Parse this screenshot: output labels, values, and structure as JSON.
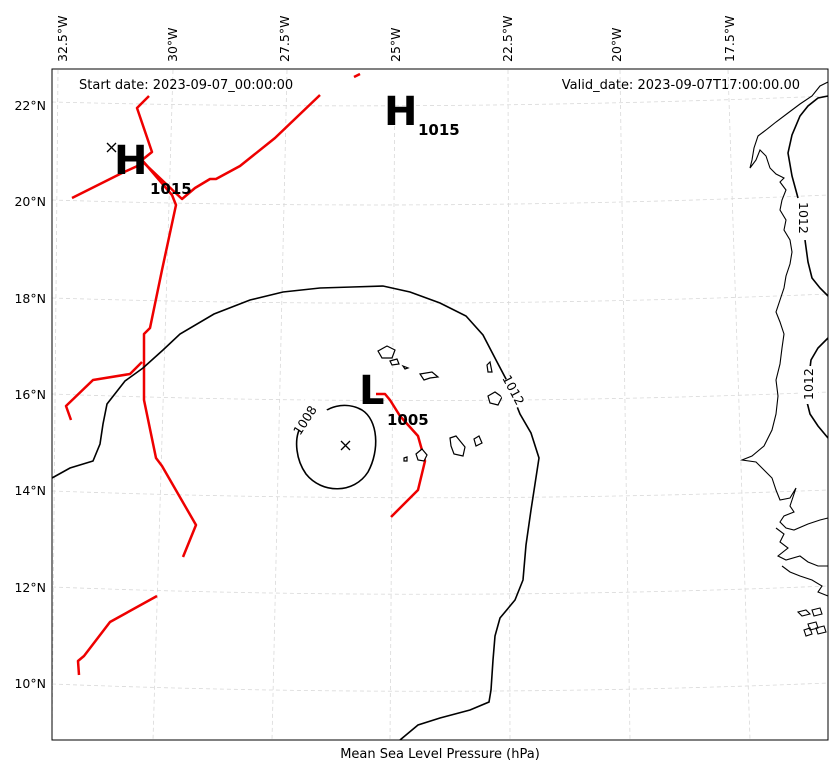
{
  "header": {
    "start_date": "Start date: 2023-09-07_00:00:00",
    "valid_date": "Valid_date: 2023-09-07T17:00:00.00"
  },
  "caption": "Mean Sea Level Pressure (hPa)",
  "axes": {
    "lon_ticks": [
      "32.5°W",
      "30°W",
      "27.5°W",
      "25°W",
      "22.5°W",
      "20°W",
      "17.5°W"
    ],
    "lat_ticks": [
      "22°N",
      "20°N",
      "18°N",
      "16°N",
      "14°N",
      "12°N",
      "10°N"
    ],
    "lon_values": [
      -32.5,
      -30,
      -27.5,
      -25,
      -22.5,
      -20,
      -17.5
    ],
    "lat_values": [
      22,
      20,
      18,
      16,
      14,
      12,
      10
    ],
    "extent": {
      "lon_min": -32.7,
      "lon_max": -16.0,
      "lat_min": 9.0,
      "lat_max": 22.8
    }
  },
  "isobar_labels": [
    {
      "text": "1008",
      "lat": 15.3,
      "lon": -26.6
    },
    {
      "text": "1012",
      "lat": 16.0,
      "lon": -23.1
    },
    {
      "text": "1012",
      "lat": 19.9,
      "lon": -16.4
    },
    {
      "text": "1012",
      "lat": 16.6,
      "lon": -16.1
    }
  ],
  "pressure_centers": [
    {
      "letter": "H",
      "value": "1015",
      "lat": 20.9,
      "lon": -30.5
    },
    {
      "letter": "H",
      "value": "1015",
      "lat": 22.0,
      "lon": -24.6
    },
    {
      "letter": "L",
      "value": "1005",
      "lat": 16.1,
      "lon": -25.4
    }
  ],
  "center_markers": [
    {
      "lat": 21.1,
      "lon": -31.5
    },
    {
      "lat": 15.0,
      "lon": -25.9
    }
  ],
  "colors": {
    "isobar": "#000000",
    "trough": "#ee0000",
    "coastline": "#000000",
    "grid": "#d9d9d9"
  }
}
